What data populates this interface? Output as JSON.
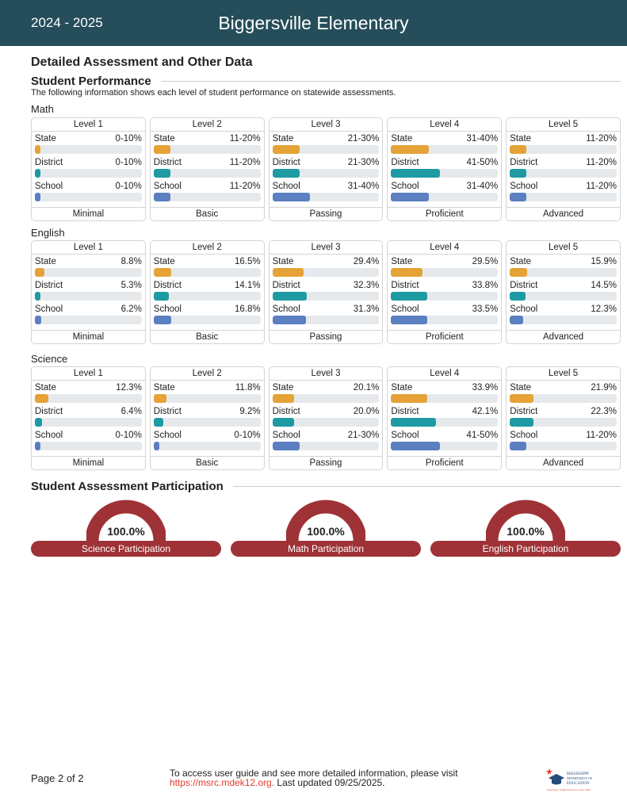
{
  "header": {
    "year": "2024 - 2025",
    "school": "Biggersville Elementary"
  },
  "title": "Detailed Assessment and Other Data",
  "performance": {
    "heading": "Student Performance",
    "description": "The following information shows each level of student performance on statewide assessments."
  },
  "row_labels": [
    "State",
    "District",
    "School"
  ],
  "colors": {
    "State": "#e5a236",
    "District": "#1e9aa3",
    "School": "#5b7fc0",
    "header": "#254d5a",
    "participation": "#9e3236",
    "track": "#e6e9ec"
  },
  "levels": [
    "Level 1",
    "Level 2",
    "Level 3",
    "Level 4",
    "Level 5"
  ],
  "level_names": [
    "Minimal",
    "Basic",
    "Passing",
    "Proficient",
    "Advanced"
  ],
  "subjects": [
    {
      "name": "Math",
      "values": [
        [
          "0-10%",
          "0-10%",
          "0-10%"
        ],
        [
          "11-20%",
          "11-20%",
          "11-20%"
        ],
        [
          "21-30%",
          "21-30%",
          "31-40%"
        ],
        [
          "31-40%",
          "41-50%",
          "31-40%"
        ],
        [
          "11-20%",
          "11-20%",
          "11-20%"
        ]
      ]
    },
    {
      "name": "English",
      "values": [
        [
          "8.8%",
          "5.3%",
          "6.2%"
        ],
        [
          "16.5%",
          "14.1%",
          "16.8%"
        ],
        [
          "29.4%",
          "32.3%",
          "31.3%"
        ],
        [
          "29.5%",
          "33.8%",
          "33.5%"
        ],
        [
          "15.9%",
          "14.5%",
          "12.3%"
        ]
      ]
    },
    {
      "name": "Science",
      "values": [
        [
          "12.3%",
          "6.4%",
          "0-10%"
        ],
        [
          "11.8%",
          "9.2%",
          "0-10%"
        ],
        [
          "20.1%",
          "20.0%",
          "21-30%"
        ],
        [
          "33.9%",
          "42.1%",
          "41-50%"
        ],
        [
          "21.9%",
          "22.3%",
          "11-20%"
        ]
      ]
    }
  ],
  "participation": {
    "heading": "Student Assessment Participation",
    "items": [
      {
        "label": "Science Participation",
        "value": "100.0%",
        "percent": 100
      },
      {
        "label": "Math Participation",
        "value": "100.0%",
        "percent": 100
      },
      {
        "label": "English Participation",
        "value": "100.0%",
        "percent": 100
      }
    ]
  },
  "footer": {
    "page": "Page 2 of 2",
    "text": "To access user guide and see more detailed information, please visit",
    "link": "https://msrc.mdek12.org.",
    "updated": "Last updated 09/25/2025.",
    "logo_text": "MISSISSIPPI DEPARTMENT OF EDUCATION"
  }
}
